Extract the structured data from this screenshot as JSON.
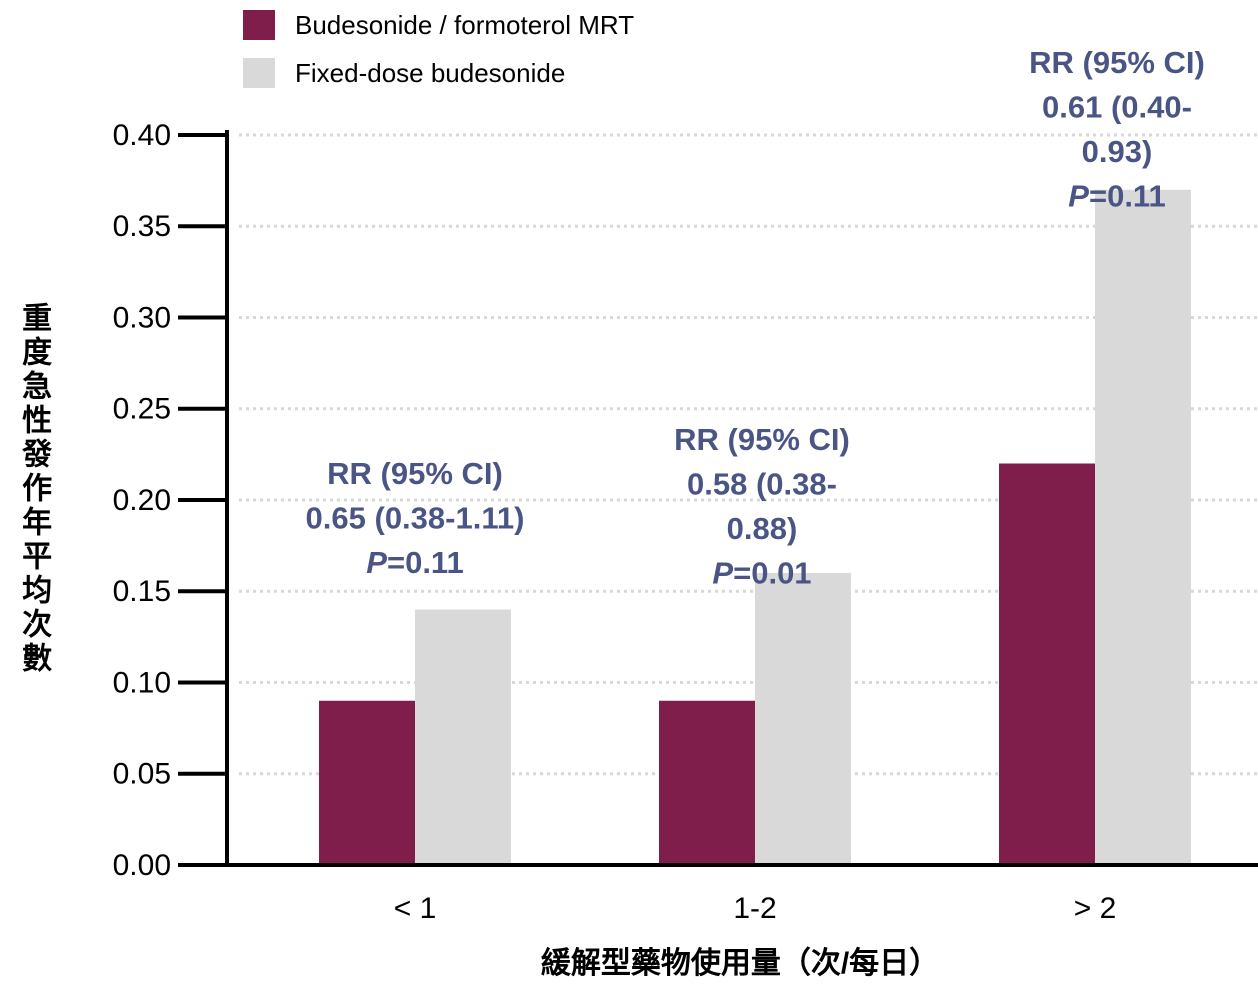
{
  "chart_data": {
    "type": "bar",
    "x_label": "緩解型藥物使用量（次/每日）",
    "y_label": "重度急性發作年平均次數",
    "categories": [
      "< 1",
      "1-2",
      "> 2"
    ],
    "series": [
      {
        "name": "Budesonide / formoterol MRT",
        "color": "#7f1d4b",
        "values": [
          0.09,
          0.09,
          0.22
        ]
      },
      {
        "name": "Fixed-dose budesonide",
        "color": "#d9d9d9",
        "values": [
          0.14,
          0.16,
          0.37
        ]
      }
    ],
    "ylim": [
      0,
      0.4
    ],
    "yticks": [
      {
        "value": 0,
        "label": "0.00"
      },
      0.05,
      {
        "value": 0.1,
        "label": "0.10"
      },
      0.15,
      {
        "value": 0.2,
        "label": "0.20"
      },
      0.25,
      {
        "value": 0.3,
        "label": "0.30"
      },
      0.35,
      {
        "value": 0.4,
        "label": "0.40"
      }
    ],
    "grid": true,
    "legend": "top-left",
    "annotations": [
      {
        "lines": [
          "RR (95% CI)",
          "0.65 (0.38-1.11)"
        ],
        "p_label": "P",
        "p_value": "=0.11"
      },
      {
        "lines": [
          "RR (95% CI)",
          "0.58 (0.38-",
          "0.88)"
        ],
        "p_label": "P",
        "p_value": "=0.01"
      },
      {
        "lines": [
          "RR (95% CI)",
          "0.61 (0.40-",
          "0.93)"
        ],
        "p_label": "P",
        "p_value": "=0.11"
      }
    ]
  }
}
